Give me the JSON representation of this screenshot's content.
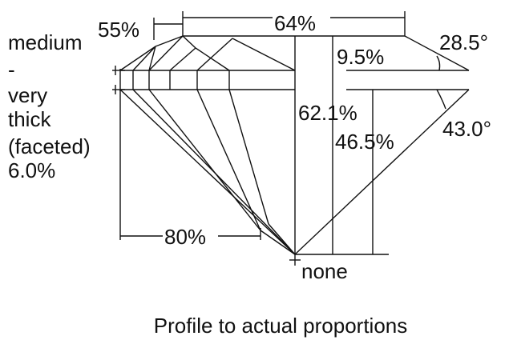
{
  "diagram": {
    "star_length": "55%",
    "table": "64%",
    "girdle": [
      "medium",
      "-",
      "very",
      "thick",
      "(faceted)",
      "6.0%"
    ],
    "crown_height": "9.5%",
    "crown_angle": "28.5°",
    "total_depth": "62.1%",
    "pavilion_depth": "46.5%",
    "pavilion_angle": "43.0°",
    "lower_half": "80%",
    "culet": "none",
    "caption": "Profile to actual proportions"
  }
}
